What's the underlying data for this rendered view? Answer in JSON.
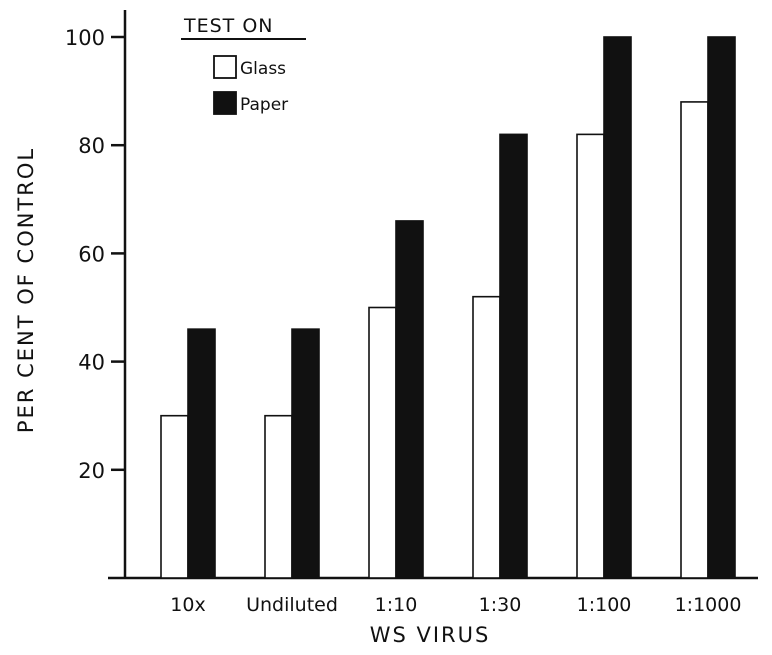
{
  "chart_data": {
    "type": "bar",
    "title": "",
    "xlabel": "WS VIRUS",
    "ylabel": "PER CENT OF CONTROL",
    "ylim": [
      0,
      100
    ],
    "yticks": [
      20,
      40,
      60,
      80,
      100
    ],
    "categories": [
      "10x",
      "Undiluted",
      "1:10",
      "1:30",
      "1:100",
      "1:1000"
    ],
    "legend": {
      "title": "TEST ON",
      "placement": "top-left"
    },
    "series": [
      {
        "name": "Glass",
        "fill": "#ffffff",
        "values": [
          30,
          30,
          50,
          52,
          82,
          88
        ]
      },
      {
        "name": "Paper",
        "fill": "#111111",
        "values": [
          46,
          46,
          66,
          82,
          100,
          100
        ]
      }
    ],
    "grid": false
  }
}
